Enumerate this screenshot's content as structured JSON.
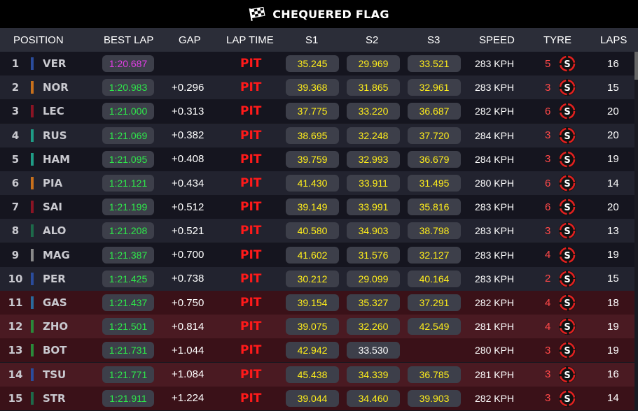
{
  "title": "CHEQUERED FLAG",
  "columns": {
    "position": "POSITION",
    "best_lap": "BEST LAP",
    "gap": "GAP",
    "lap_time": "LAP TIME",
    "s1": "S1",
    "s2": "S2",
    "s3": "S3",
    "speed": "SPEED",
    "tyre": "TYRE",
    "laps": "LAPS"
  },
  "tyre_compound": "S",
  "rows": [
    {
      "pos": "1",
      "driver": "VER",
      "team_color": "#2a4c9c",
      "best": "1:20.687",
      "fastest": true,
      "gap": "",
      "lap_time": "PIT",
      "s1": "35.245",
      "s2": "29.969",
      "s3": "33.521",
      "speed": "283 KPH",
      "tyre_age": "5",
      "laps": "16",
      "zone": "normal"
    },
    {
      "pos": "2",
      "driver": "NOR",
      "team_color": "#c8701c",
      "best": "1:20.983",
      "fastest": false,
      "gap": "+0.296",
      "lap_time": "PIT",
      "s1": "39.368",
      "s2": "31.865",
      "s3": "32.961",
      "speed": "283 KPH",
      "tyre_age": "3",
      "laps": "15",
      "zone": "normal"
    },
    {
      "pos": "3",
      "driver": "LEC",
      "team_color": "#8a1424",
      "best": "1:21.000",
      "fastest": false,
      "gap": "+0.313",
      "lap_time": "PIT",
      "s1": "37.775",
      "s2": "33.220",
      "s3": "36.687",
      "speed": "282 KPH",
      "tyre_age": "6",
      "laps": "20",
      "zone": "normal"
    },
    {
      "pos": "4",
      "driver": "RUS",
      "team_color": "#1f9c86",
      "best": "1:21.069",
      "fastest": false,
      "gap": "+0.382",
      "lap_time": "PIT",
      "s1": "38.695",
      "s2": "32.248",
      "s3": "37.720",
      "speed": "284 KPH",
      "tyre_age": "3",
      "laps": "20",
      "zone": "normal"
    },
    {
      "pos": "5",
      "driver": "HAM",
      "team_color": "#1f9c86",
      "best": "1:21.095",
      "fastest": false,
      "gap": "+0.408",
      "lap_time": "PIT",
      "s1": "39.759",
      "s2": "32.993",
      "s3": "36.679",
      "speed": "284 KPH",
      "tyre_age": "3",
      "laps": "19",
      "zone": "normal"
    },
    {
      "pos": "6",
      "driver": "PIA",
      "team_color": "#c8701c",
      "best": "1:21.121",
      "fastest": false,
      "gap": "+0.434",
      "lap_time": "PIT",
      "s1": "41.430",
      "s2": "33.911",
      "s3": "31.495",
      "speed": "280 KPH",
      "tyre_age": "6",
      "laps": "14",
      "zone": "normal"
    },
    {
      "pos": "7",
      "driver": "SAI",
      "team_color": "#8a1424",
      "best": "1:21.199",
      "fastest": false,
      "gap": "+0.512",
      "lap_time": "PIT",
      "s1": "39.149",
      "s2": "33.991",
      "s3": "35.816",
      "speed": "283 KPH",
      "tyre_age": "6",
      "laps": "20",
      "zone": "normal"
    },
    {
      "pos": "8",
      "driver": "ALO",
      "team_color": "#1d6a4a",
      "best": "1:21.208",
      "fastest": false,
      "gap": "+0.521",
      "lap_time": "PIT",
      "s1": "40.580",
      "s2": "34.903",
      "s3": "38.798",
      "speed": "283 KPH",
      "tyre_age": "3",
      "laps": "13",
      "zone": "normal"
    },
    {
      "pos": "9",
      "driver": "MAG",
      "team_color": "#8a8a8a",
      "best": "1:21.387",
      "fastest": false,
      "gap": "+0.700",
      "lap_time": "PIT",
      "s1": "41.602",
      "s2": "31.576",
      "s3": "32.127",
      "speed": "283 KPH",
      "tyre_age": "4",
      "laps": "19",
      "zone": "normal"
    },
    {
      "pos": "10",
      "driver": "PER",
      "team_color": "#2a4c9c",
      "best": "1:21.425",
      "fastest": false,
      "gap": "+0.738",
      "lap_time": "PIT",
      "s1": "30.212",
      "s2": "29.099",
      "s3": "40.164",
      "speed": "283 KPH",
      "tyre_age": "2",
      "laps": "15",
      "zone": "normal"
    },
    {
      "pos": "11",
      "driver": "GAS",
      "team_color": "#2a6a9c",
      "best": "1:21.437",
      "fastest": false,
      "gap": "+0.750",
      "lap_time": "PIT",
      "s1": "39.154",
      "s2": "35.327",
      "s3": "37.291",
      "speed": "282 KPH",
      "tyre_age": "4",
      "laps": "18",
      "zone": "out"
    },
    {
      "pos": "12",
      "driver": "ZHO",
      "team_color": "#2a8a3a",
      "best": "1:21.501",
      "fastest": false,
      "gap": "+0.814",
      "lap_time": "PIT",
      "s1": "39.075",
      "s2": "32.260",
      "s3": "42.549",
      "speed": "281 KPH",
      "tyre_age": "4",
      "laps": "19",
      "zone": "out"
    },
    {
      "pos": "13",
      "driver": "BOT",
      "team_color": "#2a8a3a",
      "best": "1:21.731",
      "fastest": false,
      "gap": "+1.044",
      "lap_time": "PIT",
      "s1": "42.942",
      "s2": "33.530",
      "s3": "",
      "speed": "280 KPH",
      "tyre_age": "3",
      "laps": "19",
      "zone": "out",
      "s2_white": true
    },
    {
      "pos": "14",
      "driver": "TSU",
      "team_color": "#2a4c9c",
      "best": "1:21.771",
      "fastest": false,
      "gap": "+1.084",
      "lap_time": "PIT",
      "s1": "45.438",
      "s2": "34.339",
      "s3": "36.785",
      "speed": "281 KPH",
      "tyre_age": "3",
      "laps": "16",
      "zone": "out"
    },
    {
      "pos": "15",
      "driver": "STR",
      "team_color": "#1d6a4a",
      "best": "1:21.911",
      "fastest": false,
      "gap": "+1.224",
      "lap_time": "PIT",
      "s1": "39.044",
      "s2": "34.460",
      "s3": "39.903",
      "speed": "282 KPH",
      "tyre_age": "3",
      "laps": "14",
      "zone": "out"
    }
  ]
}
